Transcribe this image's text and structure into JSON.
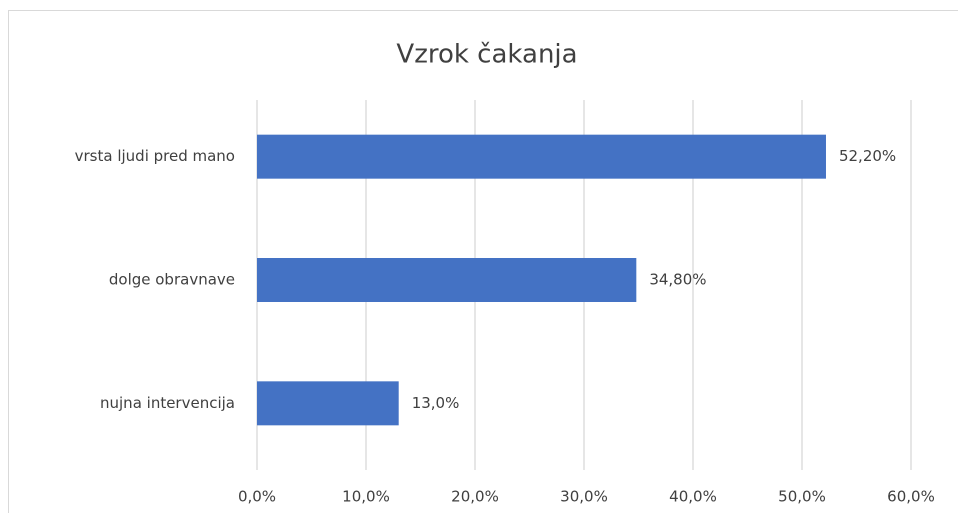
{
  "chart_data": {
    "type": "bar",
    "orientation": "horizontal",
    "title": "Vzrok čakanja",
    "categories": [
      "vrsta ljudi pred mano",
      "dolge obravnave",
      "nujna intervencija"
    ],
    "values": [
      52.2,
      34.8,
      13.0
    ],
    "value_labels": [
      "52,20%",
      "34,80%",
      "13,0%"
    ],
    "color": "#4472c4",
    "xlim": [
      0,
      60
    ],
    "xticks": [
      {
        "value": 0,
        "label": "0,0%"
      },
      {
        "value": 10,
        "label": "10,0%"
      },
      {
        "value": 20,
        "label": "20,0%"
      },
      {
        "value": 30,
        "label": "30,0%"
      },
      {
        "value": 40,
        "label": "40,0%"
      },
      {
        "value": 50,
        "label": "50,0%"
      },
      {
        "value": 60,
        "label": "60,0%"
      }
    ],
    "grid": true
  }
}
